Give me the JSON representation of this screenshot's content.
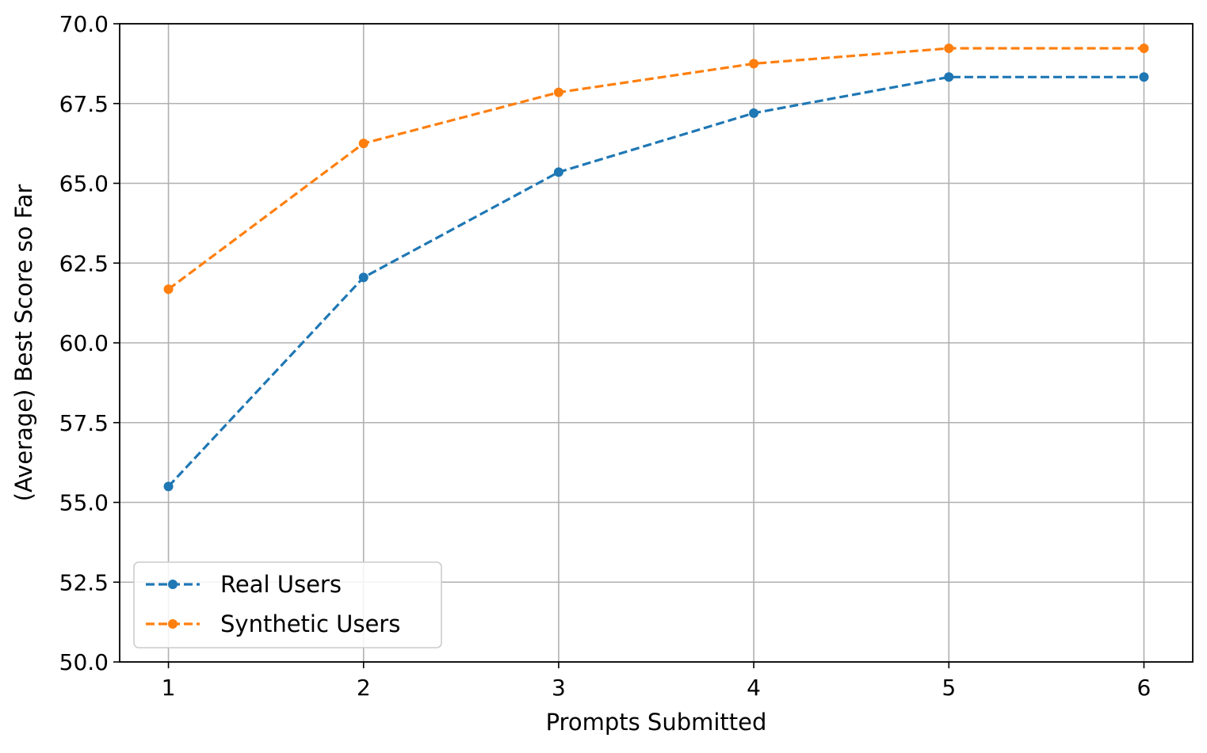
{
  "chart_data": {
    "type": "line",
    "title": "",
    "xlabel": "Prompts Submitted",
    "ylabel": "(Average) Best Score so Far",
    "x": [
      1,
      2,
      3,
      4,
      5,
      6
    ],
    "xlim": [
      0.75,
      6.25
    ],
    "ylim": [
      50.0,
      70.0
    ],
    "x_ticks": [
      1,
      2,
      3,
      4,
      5,
      6
    ],
    "x_tick_labels": [
      "1",
      "2",
      "3",
      "4",
      "5",
      "6"
    ],
    "y_ticks": [
      50.0,
      52.5,
      55.0,
      57.5,
      60.0,
      62.5,
      65.0,
      67.5,
      70.0
    ],
    "y_tick_labels": [
      "50.0",
      "52.5",
      "55.0",
      "57.5",
      "60.0",
      "62.5",
      "65.0",
      "67.5",
      "70.0"
    ],
    "grid": true,
    "legend_position": "lower-left",
    "line_style": "dashed",
    "marker": "circle",
    "series": [
      {
        "name": "Real Users",
        "color": "#1f77b4",
        "values": [
          55.5,
          62.05,
          65.35,
          67.2,
          68.33,
          68.33
        ]
      },
      {
        "name": "Synthetic Users",
        "color": "#ff7f0e",
        "values": [
          61.68,
          66.25,
          67.85,
          68.75,
          69.23,
          69.23
        ]
      }
    ]
  }
}
